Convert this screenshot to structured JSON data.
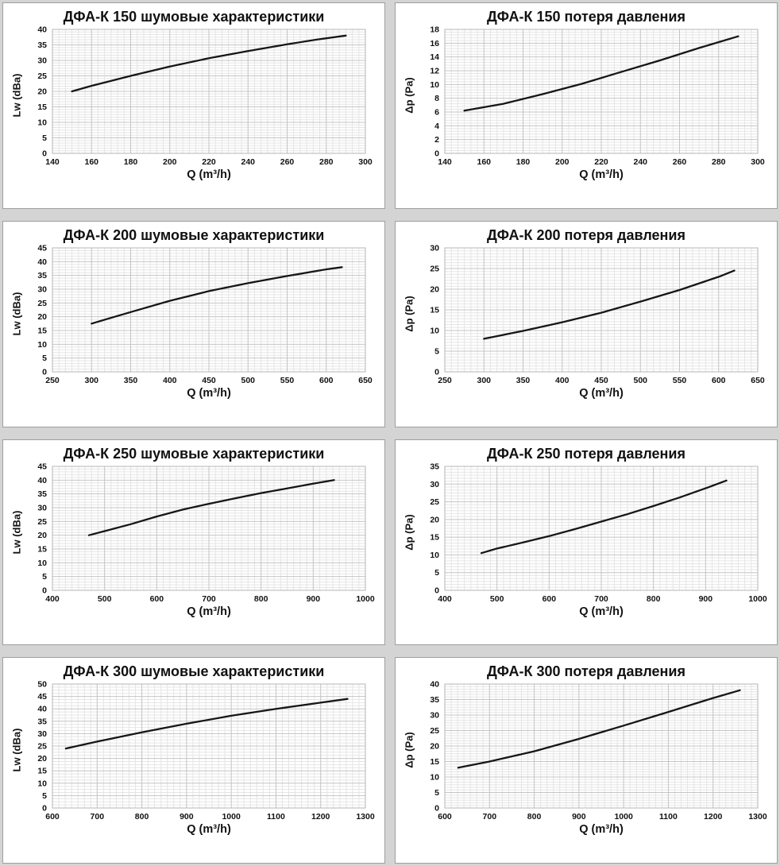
{
  "colors": {
    "page_background": "#d4d4d4",
    "panel_background": "#ffffff",
    "panel_border": "#9e9e9e",
    "plot_border": "#b4b4b4",
    "grid_major": "#c4c4c4",
    "grid_minor": "#e5e5e5",
    "line_color": "#161616",
    "text_color": "#111111"
  },
  "chart_data": [
    {
      "type": "line",
      "title": "ДФА-К 150 шумовые характеристики",
      "xlabel": "Q (m³/h)",
      "ylabel": "Lw (dBa)",
      "xlim": [
        140,
        300
      ],
      "xstep": 20,
      "ylim": [
        0,
        40
      ],
      "ystep": 5,
      "grid": "major+minor",
      "legend": "none",
      "x": [
        150,
        160,
        180,
        200,
        220,
        240,
        260,
        275,
        290
      ],
      "y": [
        20,
        21.8,
        25,
        28,
        30.7,
        33,
        35.2,
        36.7,
        38
      ]
    },
    {
      "type": "line",
      "title": "ДФА-К 150 потеря давления",
      "xlabel": "Q (m³/h)",
      "ylabel": "Δp (Pa)",
      "xlim": [
        140,
        300
      ],
      "xstep": 20,
      "ylim": [
        0,
        18
      ],
      "ystep": 2,
      "grid": "major+minor",
      "legend": "none",
      "x": [
        150,
        170,
        190,
        210,
        230,
        250,
        270,
        290
      ],
      "y": [
        6.2,
        7.2,
        8.6,
        10.1,
        11.8,
        13.5,
        15.3,
        17
      ]
    },
    {
      "type": "line",
      "title": "ДФА-К 200 шумовые характеристики",
      "xlabel": "Q (m³/h)",
      "ylabel": "Lw (dBa)",
      "xlim": [
        250,
        650
      ],
      "xstep": 50,
      "ylim": [
        0,
        45
      ],
      "ystep": 5,
      "grid": "major+minor",
      "legend": "none",
      "x": [
        300,
        350,
        400,
        450,
        500,
        550,
        600,
        620
      ],
      "y": [
        17.5,
        21.7,
        25.8,
        29.3,
        32.2,
        34.8,
        37.2,
        38
      ]
    },
    {
      "type": "line",
      "title": "ДФА-К 200 потеря давления",
      "xlabel": "Q (m³/h)",
      "ylabel": "Δp (Pa)",
      "xlim": [
        250,
        650
      ],
      "xstep": 50,
      "ylim": [
        0,
        30
      ],
      "ystep": 5,
      "grid": "major+minor",
      "legend": "none",
      "x": [
        300,
        350,
        400,
        450,
        500,
        550,
        600,
        620
      ],
      "y": [
        8,
        9.9,
        12,
        14.3,
        17,
        19.8,
        23,
        24.5
      ]
    },
    {
      "type": "line",
      "title": "ДФА-К 250 шумовые характеристики",
      "xlabel": "Q (m³/h)",
      "ylabel": "Lw (dBa)",
      "xlim": [
        400,
        1000
      ],
      "xstep": 100,
      "ylim": [
        0,
        45
      ],
      "ystep": 5,
      "grid": "major+minor",
      "legend": "none",
      "x": [
        470,
        500,
        550,
        600,
        650,
        700,
        750,
        800,
        850,
        900,
        940
      ],
      "y": [
        20,
        21.5,
        24,
        26.8,
        29.3,
        31.4,
        33.4,
        35.3,
        37,
        38.7,
        40
      ]
    },
    {
      "type": "line",
      "title": "ДФА-К 250 потеря давления",
      "xlabel": "Q (m³/h)",
      "ylabel": "Δp (Pa)",
      "xlim": [
        400,
        1000
      ],
      "xstep": 100,
      "ylim": [
        0,
        35
      ],
      "ystep": 5,
      "grid": "major+minor",
      "legend": "none",
      "x": [
        470,
        500,
        550,
        600,
        650,
        700,
        750,
        800,
        850,
        900,
        940
      ],
      "y": [
        10.5,
        11.8,
        13.5,
        15.3,
        17.3,
        19.4,
        21.5,
        23.8,
        26.2,
        28.8,
        31
      ]
    },
    {
      "type": "line",
      "title": "ДФА-К 300 шумовые характеристики",
      "xlabel": "Q (m³/h)",
      "ylabel": "Lw (dBa)",
      "xlim": [
        600,
        1300
      ],
      "xstep": 100,
      "ylim": [
        0,
        50
      ],
      "ystep": 5,
      "grid": "major+minor",
      "legend": "none",
      "x": [
        630,
        700,
        800,
        900,
        1000,
        1100,
        1200,
        1260
      ],
      "y": [
        24,
        26.8,
        30.5,
        34,
        37.2,
        40,
        42.5,
        44
      ]
    },
    {
      "type": "line",
      "title": "ДФА-К 300 потеря давления",
      "xlabel": "Q (m³/h)",
      "ylabel": "Δp (Pa)",
      "xlim": [
        600,
        1300
      ],
      "xstep": 100,
      "ylim": [
        0,
        40
      ],
      "ystep": 5,
      "grid": "major+minor",
      "legend": "none",
      "x": [
        630,
        700,
        800,
        900,
        1000,
        1100,
        1200,
        1260
      ],
      "y": [
        13,
        15,
        18.3,
        22.3,
        26.6,
        31,
        35.5,
        38
      ]
    }
  ]
}
